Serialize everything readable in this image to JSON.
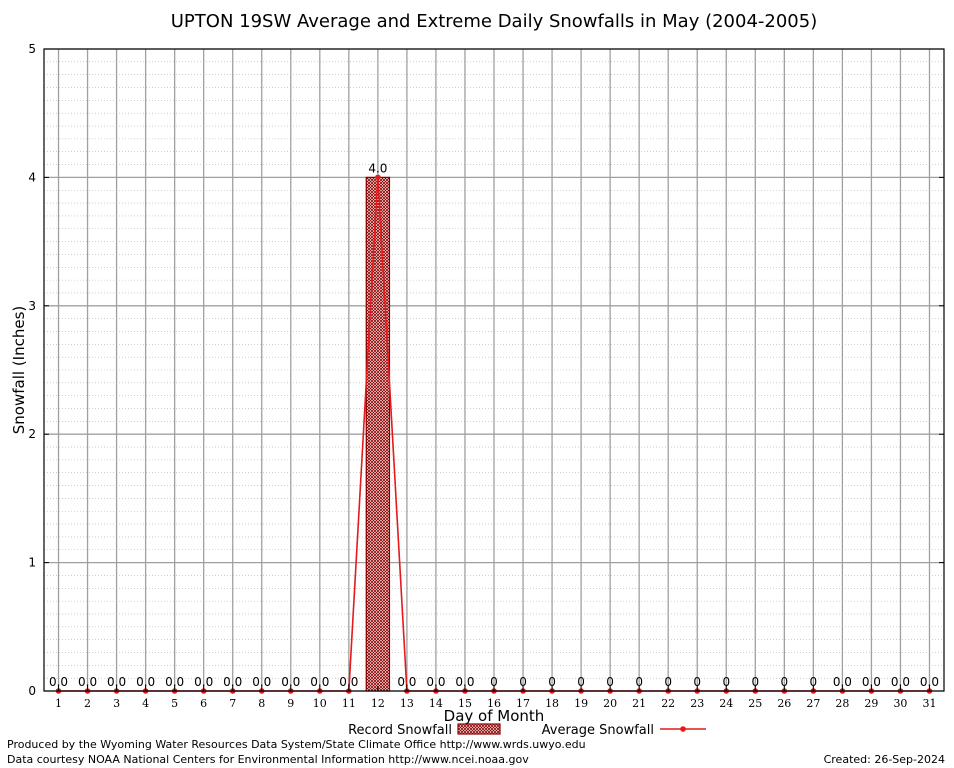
{
  "chart_data": {
    "type": "bar",
    "title": "UPTON 19SW Average and Extreme Daily Snowfalls in May (2004-2005)",
    "xlabel": "Day of Month",
    "ylabel": "Snowfall (Inches)",
    "ylim": [
      0,
      5
    ],
    "y_ticks": [
      "0",
      "1",
      "2",
      "3",
      "4",
      "5"
    ],
    "categories": [
      "1",
      "2",
      "3",
      "4",
      "5",
      "6",
      "7",
      "8",
      "9",
      "10",
      "11",
      "12",
      "13",
      "14",
      "15",
      "16",
      "17",
      "18",
      "19",
      "20",
      "21",
      "22",
      "23",
      "24",
      "25",
      "26",
      "27",
      "28",
      "29",
      "30",
      "31"
    ],
    "series": [
      {
        "name": "Record Snowfall",
        "kind": "bar",
        "values": [
          0,
          0,
          0,
          0,
          0,
          0,
          0,
          0,
          0,
          0,
          0,
          4.0,
          0,
          0,
          0,
          0,
          0,
          0,
          0,
          0,
          0,
          0,
          0,
          0,
          0,
          0,
          0,
          0,
          0,
          0,
          0
        ],
        "labels": [
          "0.0",
          "0.0",
          "0.0",
          "0.0",
          "0.0",
          "0.0",
          "0.0",
          "0.0",
          "0.0",
          "0.0",
          "0.0",
          "4.0",
          "0.0",
          "0.0",
          "0.0",
          "0",
          "0",
          "0",
          "0",
          "0",
          "0",
          "0",
          "0",
          "0",
          "0",
          "0",
          "0",
          "0.0",
          "0.0",
          "0.0",
          "0.0"
        ],
        "color": "#8b0000"
      },
      {
        "name": "Average Snowfall",
        "kind": "line",
        "values": [
          0,
          0,
          0,
          0,
          0,
          0,
          0,
          0,
          0,
          0,
          0,
          4.0,
          0,
          0,
          0,
          0,
          0,
          0,
          0,
          0,
          0,
          0,
          0,
          0,
          0,
          0,
          0,
          0,
          0,
          0,
          0
        ],
        "color": "#e41a1c"
      }
    ],
    "grid": true,
    "legend": "bottom"
  },
  "footer": {
    "produced_by": "Produced by the Wyoming Water Resources Data System/State Climate Office http://www.wrds.uwyo.edu",
    "data_courtesy": "Data courtesy NOAA National Centers for Environmental Information http://www.ncei.noaa.gov",
    "created": "Created:  26-Sep-2024"
  }
}
